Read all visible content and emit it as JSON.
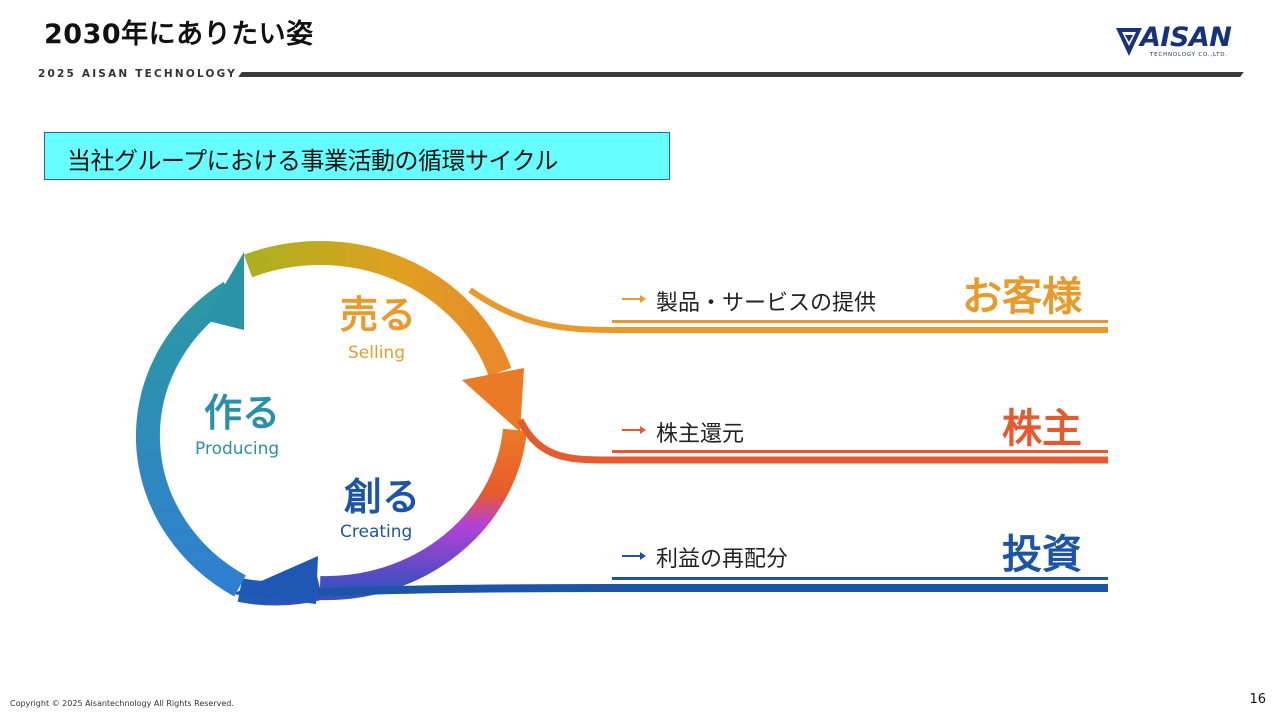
{
  "header": {
    "title": "2030年にありたい姿",
    "subheader": "2025 AISAN TECHNOLOGY",
    "logo_text": "AISAN",
    "logo_sub": "TECHNOLOGY CO.,LTD."
  },
  "section": {
    "title": "当社グループにおける事業活動の循環サイクル"
  },
  "cycle": {
    "sell_jp": "売る",
    "sell_en": "Selling",
    "make_jp": "作る",
    "make_en": "Producing",
    "create_jp": "創る",
    "create_en": "Creating"
  },
  "flows": [
    {
      "label": "製品・サービスの提供",
      "target": "お客様",
      "color": "#e89a2c"
    },
    {
      "label": "株主還元",
      "target": "株主",
      "color": "#e65a2f"
    },
    {
      "label": "利益の再配分",
      "target": "投資",
      "color": "#1d55a6"
    }
  ],
  "colors": {
    "teal": "#2a8fa8",
    "gold": "#b5a81c",
    "orange": "#e89a2c",
    "purple": "#9b3fd6",
    "blue": "#1d55a6"
  },
  "footer": {
    "copyright": "Copyright © 2025 Aisantechnology All Rights Reserved.",
    "page": "16"
  }
}
